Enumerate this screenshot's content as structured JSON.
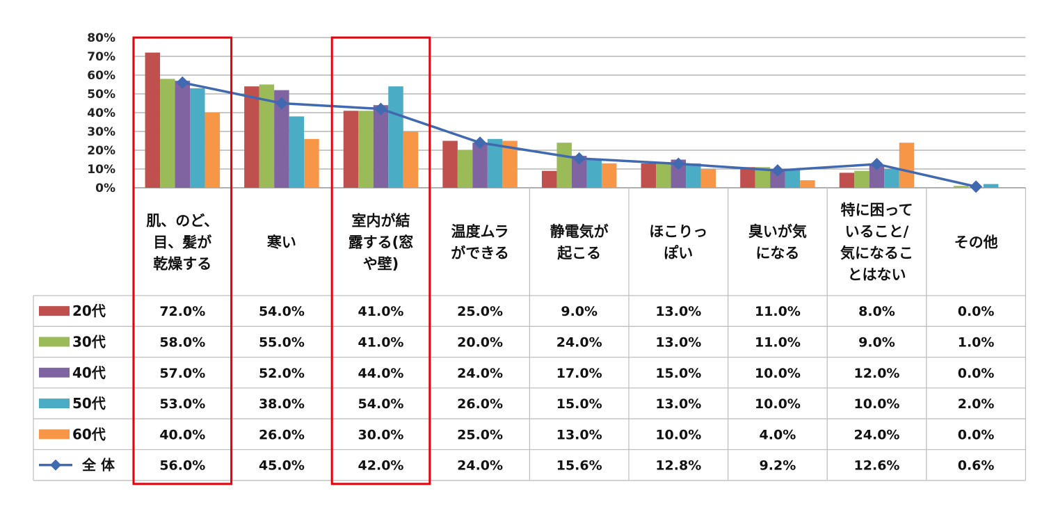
{
  "chart_data": {
    "type": "bar",
    "title": "",
    "xlabel": "",
    "ylabel": "",
    "ylim": [
      0,
      80
    ],
    "y_ticks": [
      "0%",
      "10%",
      "20%",
      "30%",
      "40%",
      "50%",
      "60%",
      "70%",
      "80%"
    ],
    "grid": true,
    "categories": [
      [
        "肌、のど、",
        "目、髪が",
        "乾燥する"
      ],
      [
        "寒い"
      ],
      [
        "室内が結",
        "露する(窓",
        "や壁)"
      ],
      [
        "温度ムラ",
        "ができる"
      ],
      [
        "静電気が",
        "起こる"
      ],
      [
        "ほこりっ",
        "ぽい"
      ],
      [
        "臭いが気",
        "になる"
      ],
      [
        "特に困って",
        "いること/",
        "気になるこ",
        "とはない"
      ],
      [
        "その他"
      ]
    ],
    "series": [
      {
        "name": "20代",
        "type": "bar",
        "color": "#c0504d",
        "values": [
          72.0,
          54.0,
          41.0,
          25.0,
          9.0,
          13.0,
          11.0,
          8.0,
          0.0
        ],
        "labels": [
          "72.0%",
          "54.0%",
          "41.0%",
          "25.0%",
          "9.0%",
          "13.0%",
          "11.0%",
          "8.0%",
          "0.0%"
        ]
      },
      {
        "name": "30代",
        "type": "bar",
        "color": "#9bbb59",
        "values": [
          58.0,
          55.0,
          41.0,
          20.0,
          24.0,
          13.0,
          11.0,
          9.0,
          1.0
        ],
        "labels": [
          "58.0%",
          "55.0%",
          "41.0%",
          "20.0%",
          "24.0%",
          "13.0%",
          "11.0%",
          "9.0%",
          "1.0%"
        ]
      },
      {
        "name": "40代",
        "type": "bar",
        "color": "#8064a2",
        "values": [
          57.0,
          52.0,
          44.0,
          24.0,
          17.0,
          15.0,
          10.0,
          12.0,
          0.0
        ],
        "labels": [
          "57.0%",
          "52.0%",
          "44.0%",
          "24.0%",
          "17.0%",
          "15.0%",
          "10.0%",
          "12.0%",
          "0.0%"
        ]
      },
      {
        "name": "50代",
        "type": "bar",
        "color": "#4bacc6",
        "values": [
          53.0,
          38.0,
          54.0,
          26.0,
          15.0,
          13.0,
          10.0,
          10.0,
          2.0
        ],
        "labels": [
          "53.0%",
          "38.0%",
          "54.0%",
          "26.0%",
          "15.0%",
          "13.0%",
          "10.0%",
          "10.0%",
          "2.0%"
        ]
      },
      {
        "name": "60代",
        "type": "bar",
        "color": "#f79646",
        "values": [
          40.0,
          26.0,
          30.0,
          25.0,
          13.0,
          10.0,
          4.0,
          24.0,
          0.0
        ],
        "labels": [
          "40.0%",
          "26.0%",
          "30.0%",
          "25.0%",
          "13.0%",
          "10.0%",
          "4.0%",
          "24.0%",
          "0.0%"
        ]
      },
      {
        "name": "全 体",
        "type": "line",
        "color": "#4169b0",
        "values": [
          56.0,
          45.0,
          42.0,
          24.0,
          15.6,
          12.8,
          9.2,
          12.6,
          0.6
        ],
        "labels": [
          "56.0%",
          "45.0%",
          "42.0%",
          "24.0%",
          "15.6%",
          "12.8%",
          "9.2%",
          "12.6%",
          "0.6%"
        ]
      }
    ],
    "highlighted_categories": [
      0,
      2
    ],
    "highlight_color": "#e8000b",
    "gridline_color": "#a6a6a6",
    "table_border_color": "#bfbfbf"
  }
}
